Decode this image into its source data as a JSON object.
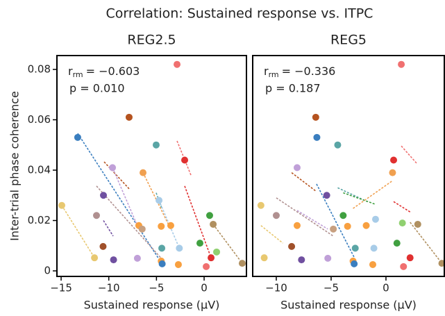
{
  "title": "Correlation: Sustained response vs. ITPC",
  "chart_data": [
    {
      "type": "scatter",
      "title": "REG2.5",
      "x_label": "Sustained response (μV)",
      "y_label": "Inter-trial phase coherence",
      "annotation": {
        "r": "r",
        "r_sub": "rm",
        "r_value": "= −0.603",
        "p": "p = 0.010"
      },
      "xlim": [
        -15.44,
        4.44
      ],
      "xticks": [
        {
          "value": -15,
          "label": "−15"
        },
        {
          "value": -10,
          "label": "−10"
        },
        {
          "value": -5,
          "label": "−5"
        },
        0
      ],
      "ylim": [
        -0.0022,
        0.0855
      ],
      "yticks": [
        0,
        0.02,
        0.04,
        0.06,
        0.08
      ],
      "points": {
        "x": [
          -2.84,
          -7.87,
          -13.26,
          -5.03,
          -2.04,
          -9.61,
          -6.41,
          -4.73,
          -10.56,
          -14.93,
          -11.29,
          0.58,
          0.95,
          -3.5,
          -4.5,
          -6.85,
          -6.5,
          -0.44,
          -2.6,
          -4.44,
          1.31,
          -10.6,
          -11.5,
          -9.5,
          -7.0,
          0.73,
          -4.5,
          -4.4,
          -2.7,
          0.22,
          4.0
        ],
        "y": [
          0.082,
          0.061,
          0.053,
          0.05,
          0.044,
          0.041,
          0.039,
          0.028,
          0.03,
          0.026,
          0.022,
          0.022,
          0.0185,
          0.018,
          0.0177,
          0.018,
          0.0166,
          0.011,
          0.009,
          0.009,
          0.0075,
          0.0097,
          0.0052,
          0.0044,
          0.005,
          0.0052,
          0.0039,
          0.0028,
          0.0025,
          0.0017,
          0.003
        ],
        "colors": [
          "#f07070",
          "#b5531f",
          "#3a7ebf",
          "#5aa5a5",
          "#e03030",
          "#c0a0d8",
          "#f0a050",
          "#a8cce8",
          "#7050a0",
          "#e8c870",
          "#b09090",
          "#40a040",
          "#b09060",
          "#f8a040",
          "#f8a040",
          "#f8a040",
          "#c8a080",
          "#40a040",
          "#a8cce8",
          "#5aa5a5",
          "#90d070",
          "#a0502a",
          "#e8c870",
          "#7050a0",
          "#c0a0d8",
          "#e03030",
          "#f8a040",
          "#3a7ebf",
          "#f8a040",
          "#f07070",
          "#b09060"
        ]
      },
      "fit_lines": [
        {
          "x": [
            -13.26,
            -4.5
          ],
          "y": [
            0.0546,
            0.0033
          ],
          "color": "#3a7ebf"
        },
        {
          "x": [
            -11.29,
            -4.5
          ],
          "y": [
            0.0337,
            0.005
          ],
          "color": "#b09090"
        },
        {
          "x": [
            -10.49,
            -7.87
          ],
          "y": [
            0.0433,
            0.0326
          ],
          "color": "#b5531f"
        },
        {
          "x": [
            -9.61,
            -6.85
          ],
          "y": [
            0.041,
            0.0166
          ],
          "color": "#c0a0d8"
        },
        {
          "x": [
            -14.93,
            -11.5
          ],
          "y": [
            0.026,
            0.0052
          ],
          "color": "#e8c870"
        },
        {
          "x": [
            -10.56,
            -9.54
          ],
          "y": [
            0.02,
            0.0138
          ],
          "color": "#7050a0"
        },
        {
          "x": [
            -6.41,
            -3.5
          ],
          "y": [
            0.039,
            0.0166
          ],
          "color": "#f0a050"
        },
        {
          "x": [
            -5.03,
            -4.44
          ],
          "y": [
            0.031,
            0.0248
          ],
          "color": "#5aa5a5"
        },
        {
          "x": [
            -4.73,
            -2.6
          ],
          "y": [
            0.028,
            0.009
          ],
          "color": "#a8cce8"
        },
        {
          "x": [
            -2.84,
            -1.38
          ],
          "y": [
            0.0516,
            0.038
          ],
          "color": "#f07070"
        },
        {
          "x": [
            -2.04,
            0.73
          ],
          "y": [
            0.0337,
            0.0052
          ],
          "color": "#e03030"
        },
        {
          "x": [
            0.95,
            4.0
          ],
          "y": [
            0.0185,
            0.003
          ],
          "color": "#b09060"
        }
      ]
    },
    {
      "type": "scatter",
      "title": "REG5",
      "x_label": "Sustained response (μV)",
      "annotation": {
        "r": "r",
        "r_sub": "rm",
        "r_value": "= −0.336",
        "p": "p = 0.187"
      },
      "xlim": [
        -12.15,
        5.32
      ],
      "xticks": [
        {
          "value": -10,
          "label": "−10"
        },
        {
          "value": -5,
          "label": "−5"
        },
        0
      ],
      "ylim": [
        -0.0022,
        0.0855
      ],
      "points": {
        "x": [
          1.4,
          -6.4,
          -6.3,
          -4.4,
          0.7,
          -8.1,
          0.6,
          -0.95,
          -5.4,
          -11.4,
          -10,
          -3.9,
          2.9,
          -3.5,
          -8.1,
          -1.8,
          1.5,
          -4.8,
          1.0,
          -8.6,
          -2.8,
          -1.1,
          -11.1,
          -7.7,
          -5.3,
          2.2,
          -3,
          -2.9,
          -1.2,
          1.6,
          5.1
        ],
        "y": [
          0.082,
          0.061,
          0.053,
          0.05,
          0.044,
          0.041,
          0.039,
          0.0205,
          0.03,
          0.026,
          0.022,
          0.022,
          0.0185,
          0.0177,
          0.018,
          0.018,
          0.019,
          0.0166,
          0.011,
          0.0097,
          0.009,
          0.009,
          0.0052,
          0.0044,
          0.005,
          0.0052,
          0.0039,
          0.0028,
          0.0025,
          0.0017,
          0.003
        ],
        "colors": [
          "#f07070",
          "#b5531f",
          "#3a7ebf",
          "#5aa5a5",
          "#e03030",
          "#c0a0d8",
          "#f0a050",
          "#a8cce8",
          "#7050a0",
          "#e8c870",
          "#b09090",
          "#40a040",
          "#b09060",
          "#f8a040",
          "#f8a040",
          "#f8a040",
          "#90d070",
          "#c8a080",
          "#40a040",
          "#a0502a",
          "#5aa5a5",
          "#a8cce8",
          "#e8c870",
          "#7050a0",
          "#c0a0d8",
          "#e03030",
          "#f8a040",
          "#3a7ebf",
          "#f8a040",
          "#f07070",
          "#b09060"
        ]
      },
      "fit_lines": [
        {
          "x": [
            -6.33,
            -2.91
          ],
          "y": [
            0.0345,
            0.0055
          ],
          "color": "#3a7ebf"
        },
        {
          "x": [
            -8.6,
            -6.4
          ],
          "y": [
            0.039,
            0.0317
          ],
          "color": "#b5531f"
        },
        {
          "x": [
            -10,
            -4.8
          ],
          "y": [
            0.029,
            0.0138
          ],
          "color": "#b09090"
        },
        {
          "x": [
            -11.4,
            -9.4
          ],
          "y": [
            0.018,
            0.011
          ],
          "color": "#e8c870"
        },
        {
          "x": [
            -8.1,
            -5.3
          ],
          "y": [
            0.024,
            0.0166
          ],
          "color": "#c0a0d8"
        },
        {
          "x": [
            -4.4,
            -1.7
          ],
          "y": [
            0.033,
            0.0275
          ],
          "color": "#5aa5a5"
        },
        {
          "x": [
            -3.9,
            -1.0
          ],
          "y": [
            0.031,
            0.0265
          ],
          "color": "#40a040"
        },
        {
          "x": [
            -3,
            0.6
          ],
          "y": [
            0.0248,
            0.0358
          ],
          "color": "#f0a050"
        },
        {
          "x": [
            0.7,
            2.2
          ],
          "y": [
            0.0275,
            0.0234
          ],
          "color": "#e03030"
        },
        {
          "x": [
            1.4,
            2.8
          ],
          "y": [
            0.0496,
            0.0427
          ],
          "color": "#f07070"
        },
        {
          "x": [
            2.2,
            5.1
          ],
          "y": [
            0.0193,
            0.003
          ],
          "color": "#b09060"
        }
      ]
    }
  ]
}
